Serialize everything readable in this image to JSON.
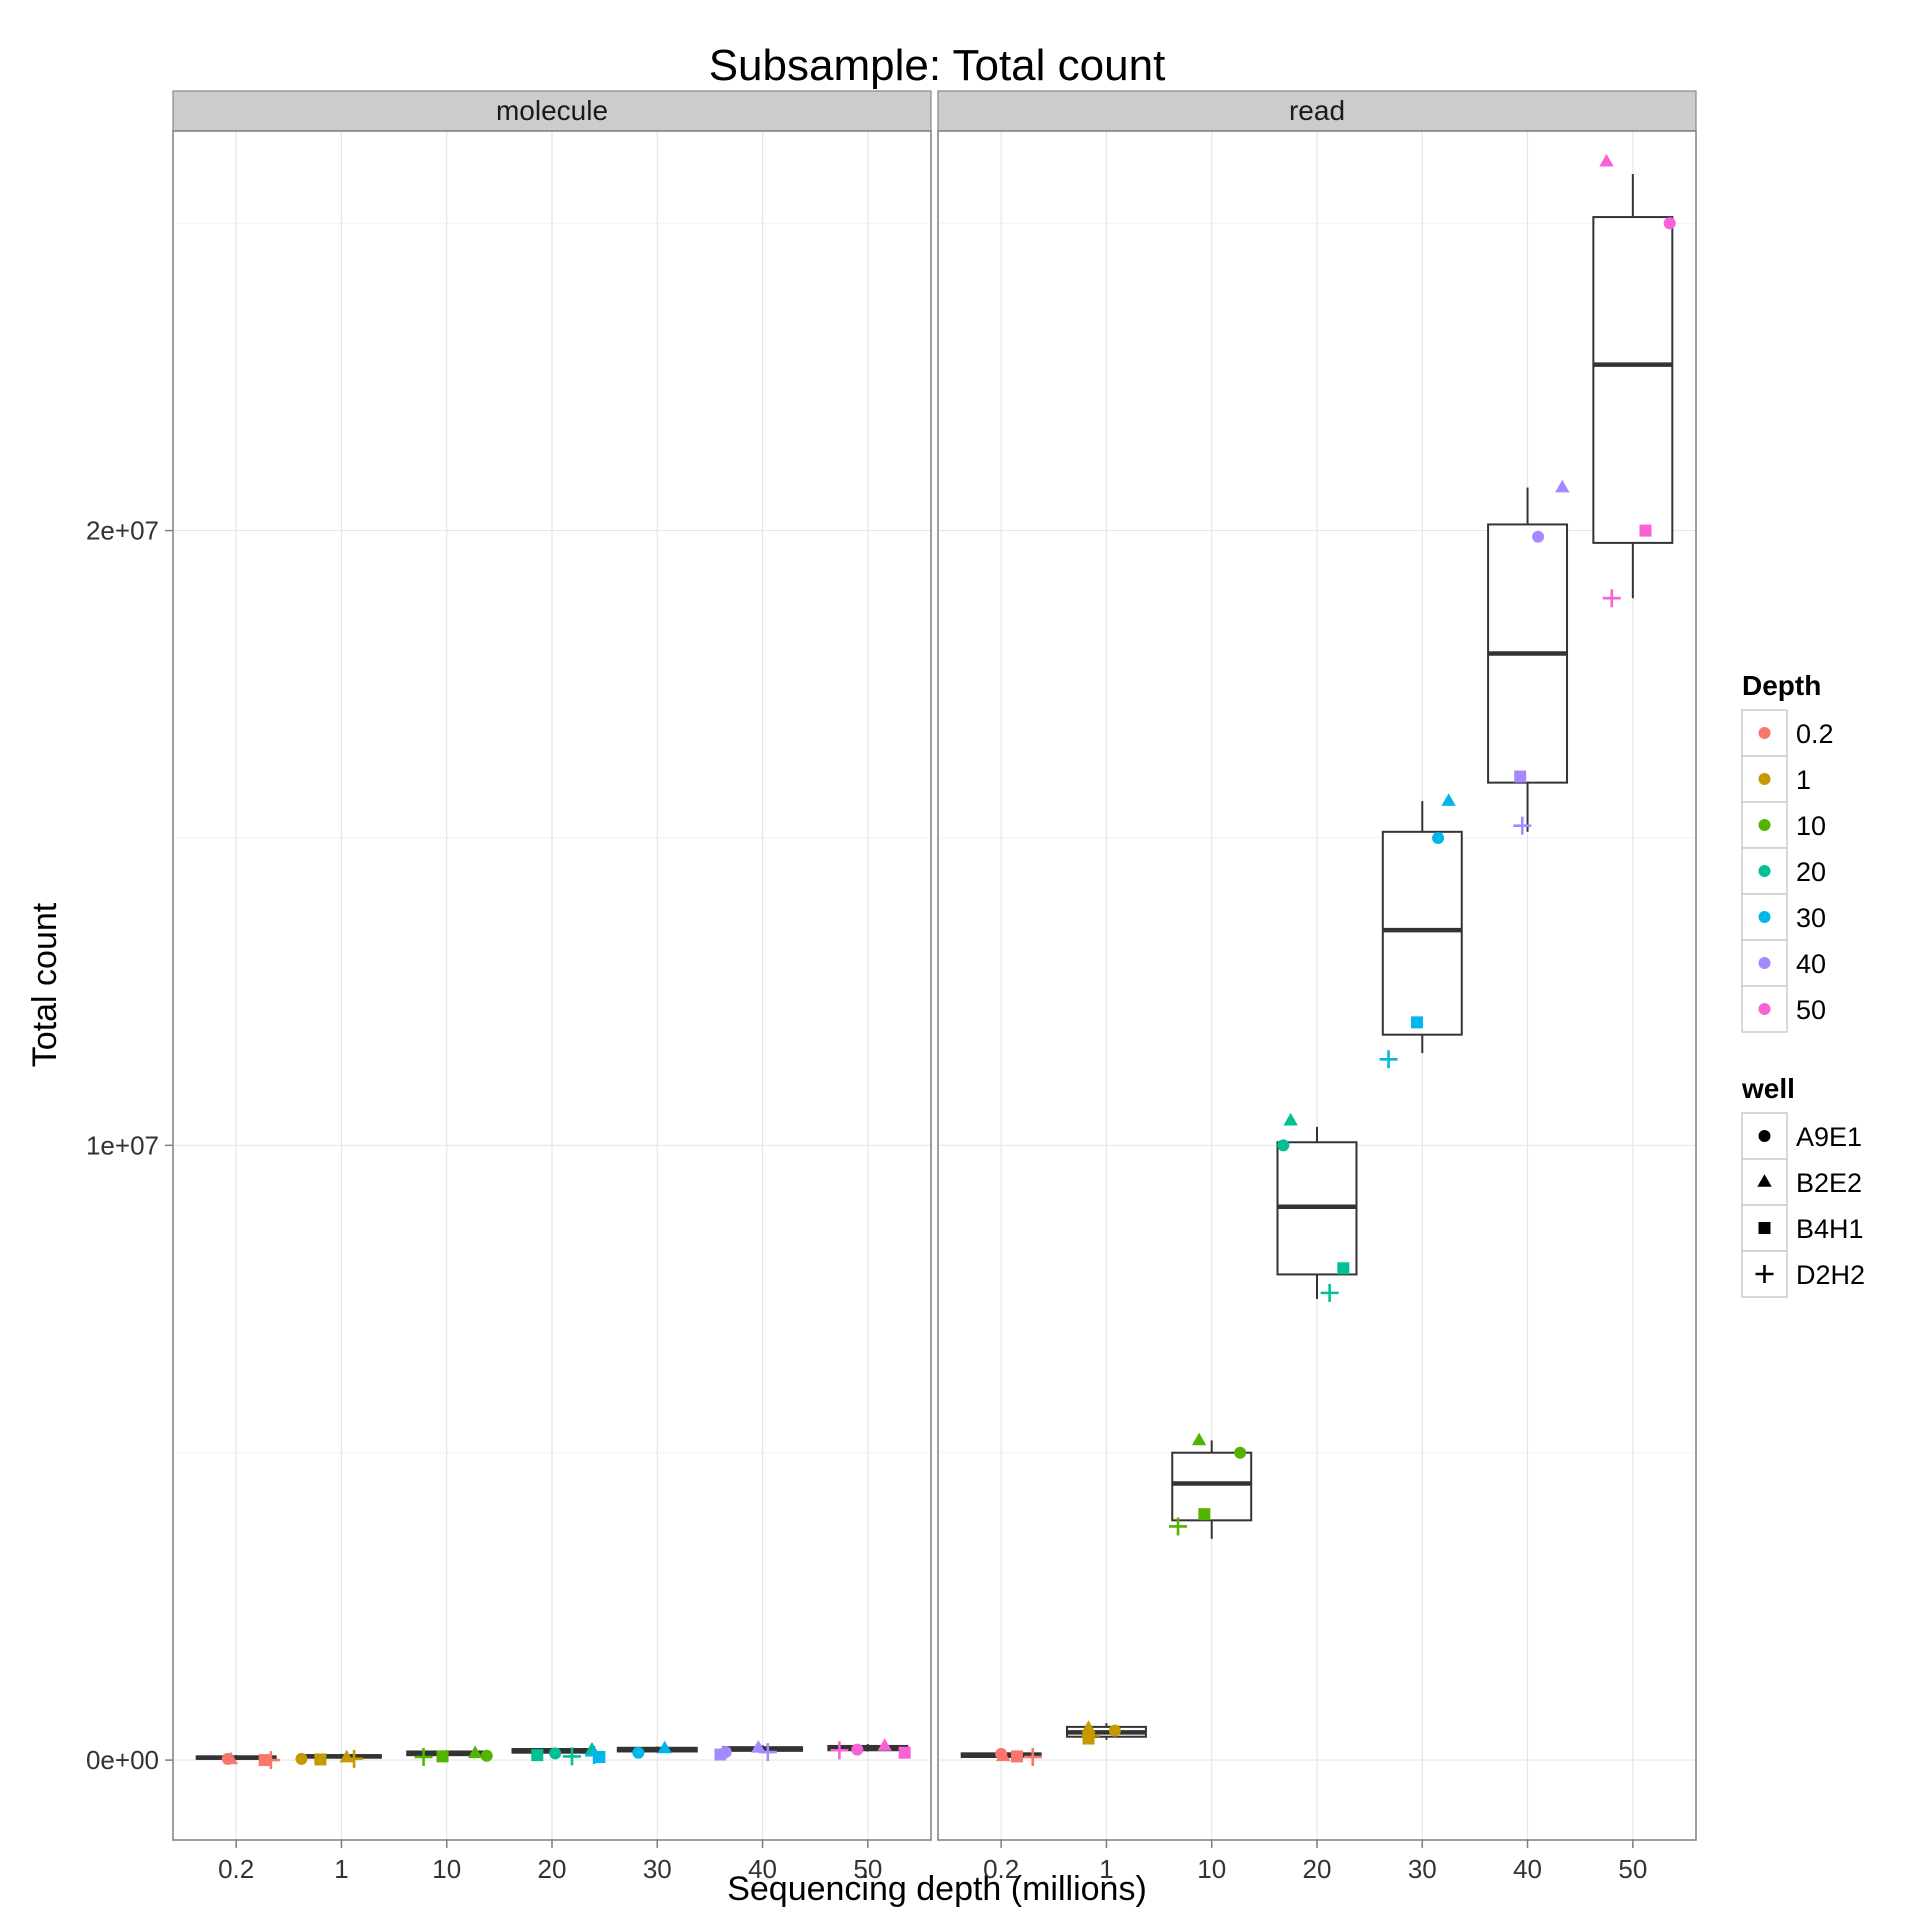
{
  "chart_data": {
    "type": "box",
    "title": "Subsample: Total count",
    "xlabel": "Sequencing depth (millions)",
    "ylabel": "Total count",
    "categories": [
      "0.2",
      "1",
      "10",
      "20",
      "30",
      "40",
      "50"
    ],
    "yticks": [
      0,
      10000000,
      20000000
    ],
    "ytick_labels": [
      "0e+00",
      "1e+07",
      "2e+07"
    ],
    "ylim": [
      -1300000,
      26500000
    ],
    "grid": true,
    "legend_position": "right",
    "panels": [
      {
        "label": "molecule",
        "boxes": [
          {
            "q1": 20000,
            "median": 40000,
            "q3": 60000,
            "lo": 0,
            "hi": 80000
          },
          {
            "q1": 40000,
            "median": 60000,
            "q3": 80000,
            "lo": 20000,
            "hi": 100000
          },
          {
            "q1": 80000,
            "median": 110000,
            "q3": 140000,
            "lo": 60000,
            "hi": 160000
          },
          {
            "q1": 120000,
            "median": 150000,
            "q3": 180000,
            "lo": 100000,
            "hi": 200000
          },
          {
            "q1": 140000,
            "median": 170000,
            "q3": 200000,
            "lo": 120000,
            "hi": 220000
          },
          {
            "q1": 150000,
            "median": 180000,
            "q3": 210000,
            "lo": 130000,
            "hi": 240000
          },
          {
            "q1": 160000,
            "median": 200000,
            "q3": 230000,
            "lo": 140000,
            "hi": 260000
          }
        ],
        "points": [
          {
            "depth": "0.2",
            "well": "A9E1",
            "xoff": -0.08,
            "y": 20000
          },
          {
            "depth": "0.2",
            "well": "B2E2",
            "xoff": -0.05,
            "y": 10000
          },
          {
            "depth": "0.2",
            "well": "B4H1",
            "xoff": 0.27,
            "y": 0
          },
          {
            "depth": "0.2",
            "well": "D2H2",
            "xoff": 0.33,
            "y": 0
          },
          {
            "depth": "1",
            "well": "A9E1",
            "xoff": -0.38,
            "y": 20000
          },
          {
            "depth": "1",
            "well": "B2E2",
            "xoff": 0.05,
            "y": 40000
          },
          {
            "depth": "1",
            "well": "B4H1",
            "xoff": -0.2,
            "y": 10000
          },
          {
            "depth": "1",
            "well": "D2H2",
            "xoff": 0.12,
            "y": 20000
          },
          {
            "depth": "10",
            "well": "A9E1",
            "xoff": 0.38,
            "y": 70000
          },
          {
            "depth": "10",
            "well": "B2E2",
            "xoff": 0.27,
            "y": 110000
          },
          {
            "depth": "10",
            "well": "B4H1",
            "xoff": -0.04,
            "y": 60000
          },
          {
            "depth": "10",
            "well": "D2H2",
            "xoff": -0.22,
            "y": 50000
          },
          {
            "depth": "20",
            "well": "A9E1",
            "xoff": 0.03,
            "y": 110000
          },
          {
            "depth": "20",
            "well": "B2E2",
            "xoff": 0.38,
            "y": 170000
          },
          {
            "depth": "20",
            "well": "B4H1",
            "xoff": -0.14,
            "y": 80000
          },
          {
            "depth": "20",
            "well": "D2H2",
            "xoff": 0.19,
            "y": 60000
          },
          {
            "depth": "30",
            "well": "A9E1",
            "xoff": -0.18,
            "y": 120000
          },
          {
            "depth": "30",
            "well": "B2E2",
            "xoff": 0.07,
            "y": 190000
          },
          {
            "depth": "30",
            "well": "B4H1",
            "xoff": -0.55,
            "y": 50000
          },
          {
            "depth": "30",
            "well": "D2H2",
            "xoff": -0.6,
            "y": 80000
          },
          {
            "depth": "40",
            "well": "A9E1",
            "xoff": -0.35,
            "y": 130000
          },
          {
            "depth": "40",
            "well": "B2E2",
            "xoff": -0.04,
            "y": 200000
          },
          {
            "depth": "40",
            "well": "B4H1",
            "xoff": -0.4,
            "y": 90000
          },
          {
            "depth": "40",
            "well": "D2H2",
            "xoff": 0.05,
            "y": 130000
          },
          {
            "depth": "50",
            "well": "A9E1",
            "xoff": -0.1,
            "y": 170000
          },
          {
            "depth": "50",
            "well": "B2E2",
            "xoff": 0.16,
            "y": 230000
          },
          {
            "depth": "50",
            "well": "B4H1",
            "xoff": 0.35,
            "y": 120000
          },
          {
            "depth": "50",
            "well": "D2H2",
            "xoff": -0.27,
            "y": 160000
          }
        ]
      },
      {
        "label": "read",
        "boxes": [
          {
            "q1": 50000,
            "median": 80000,
            "q3": 110000,
            "lo": 30000,
            "hi": 130000
          },
          {
            "q1": 380000,
            "median": 450000,
            "q3": 540000,
            "lo": 330000,
            "hi": 600000
          },
          {
            "q1": 3900000,
            "median": 4500000,
            "q3": 5000000,
            "lo": 3600000,
            "hi": 5200000
          },
          {
            "q1": 7900000,
            "median": 9000000,
            "q3": 10050000,
            "lo": 7500000,
            "hi": 10300000
          },
          {
            "q1": 11800000,
            "median": 13500000,
            "q3": 15100000,
            "lo": 11500000,
            "hi": 15600000
          },
          {
            "q1": 15900000,
            "median": 18000000,
            "q3": 20100000,
            "lo": 15100000,
            "hi": 20700000
          },
          {
            "q1": 19800000,
            "median": 22700000,
            "q3": 25100000,
            "lo": 18900000,
            "hi": 25800000
          }
        ],
        "points": [
          {
            "depth": "0.2",
            "well": "A9E1",
            "xoff": 0.0,
            "y": 100000
          },
          {
            "depth": "0.2",
            "well": "B2E2",
            "xoff": 0.02,
            "y": 60000
          },
          {
            "depth": "0.2",
            "well": "B4H1",
            "xoff": 0.15,
            "y": 60000
          },
          {
            "depth": "0.2",
            "well": "D2H2",
            "xoff": 0.3,
            "y": 50000
          },
          {
            "depth": "1",
            "well": "A9E1",
            "xoff": 0.08,
            "y": 480000
          },
          {
            "depth": "1",
            "well": "B2E2",
            "xoff": -0.17,
            "y": 520000
          },
          {
            "depth": "1",
            "well": "B4H1",
            "xoff": -0.17,
            "y": 350000
          },
          {
            "depth": "1",
            "well": "D2H2",
            "xoff": -0.15,
            "y": 400000
          },
          {
            "depth": "10",
            "well": "A9E1",
            "xoff": 0.27,
            "y": 5000000
          },
          {
            "depth": "10",
            "well": "B2E2",
            "xoff": -0.12,
            "y": 5200000
          },
          {
            "depth": "10",
            "well": "B4H1",
            "xoff": -0.07,
            "y": 4000000
          },
          {
            "depth": "10",
            "well": "D2H2",
            "xoff": -0.32,
            "y": 3800000
          },
          {
            "depth": "20",
            "well": "A9E1",
            "xoff": -0.32,
            "y": 10000000
          },
          {
            "depth": "20",
            "well": "B2E2",
            "xoff": -0.25,
            "y": 10400000
          },
          {
            "depth": "20",
            "well": "B4H1",
            "xoff": 0.25,
            "y": 8000000
          },
          {
            "depth": "20",
            "well": "D2H2",
            "xoff": 0.12,
            "y": 7600000
          },
          {
            "depth": "30",
            "well": "A9E1",
            "xoff": 0.15,
            "y": 15000000
          },
          {
            "depth": "30",
            "well": "B2E2",
            "xoff": 0.25,
            "y": 15600000
          },
          {
            "depth": "30",
            "well": "B4H1",
            "xoff": -0.05,
            "y": 12000000
          },
          {
            "depth": "30",
            "well": "D2H2",
            "xoff": -0.32,
            "y": 11400000
          },
          {
            "depth": "40",
            "well": "A9E1",
            "xoff": 0.1,
            "y": 19900000
          },
          {
            "depth": "40",
            "well": "B2E2",
            "xoff": 0.33,
            "y": 20700000
          },
          {
            "depth": "40",
            "well": "B4H1",
            "xoff": -0.07,
            "y": 16000000
          },
          {
            "depth": "40",
            "well": "D2H2",
            "xoff": -0.05,
            "y": 15200000
          },
          {
            "depth": "50",
            "well": "A9E1",
            "xoff": 0.35,
            "y": 25000000
          },
          {
            "depth": "50",
            "well": "B2E2",
            "xoff": -0.25,
            "y": 26000000
          },
          {
            "depth": "50",
            "well": "B4H1",
            "xoff": 0.12,
            "y": 20000000
          },
          {
            "depth": "50",
            "well": "D2H2",
            "xoff": -0.2,
            "y": 18900000
          }
        ]
      }
    ],
    "legend": {
      "depth": {
        "title": "Depth",
        "entries": [
          {
            "label": "0.2",
            "color": "#F8766D"
          },
          {
            "label": "1",
            "color": "#C49A00"
          },
          {
            "label": "10",
            "color": "#53B400"
          },
          {
            "label": "20",
            "color": "#00C094"
          },
          {
            "label": "30",
            "color": "#00B6EB"
          },
          {
            "label": "40",
            "color": "#A58AFF"
          },
          {
            "label": "50",
            "color": "#FB61D7"
          }
        ]
      },
      "well": {
        "title": "well",
        "entries": [
          {
            "label": "A9E1",
            "shape": "circle"
          },
          {
            "label": "B2E2",
            "shape": "triangle"
          },
          {
            "label": "B4H1",
            "shape": "square"
          },
          {
            "label": "D2H2",
            "shape": "plus"
          }
        ]
      }
    }
  }
}
